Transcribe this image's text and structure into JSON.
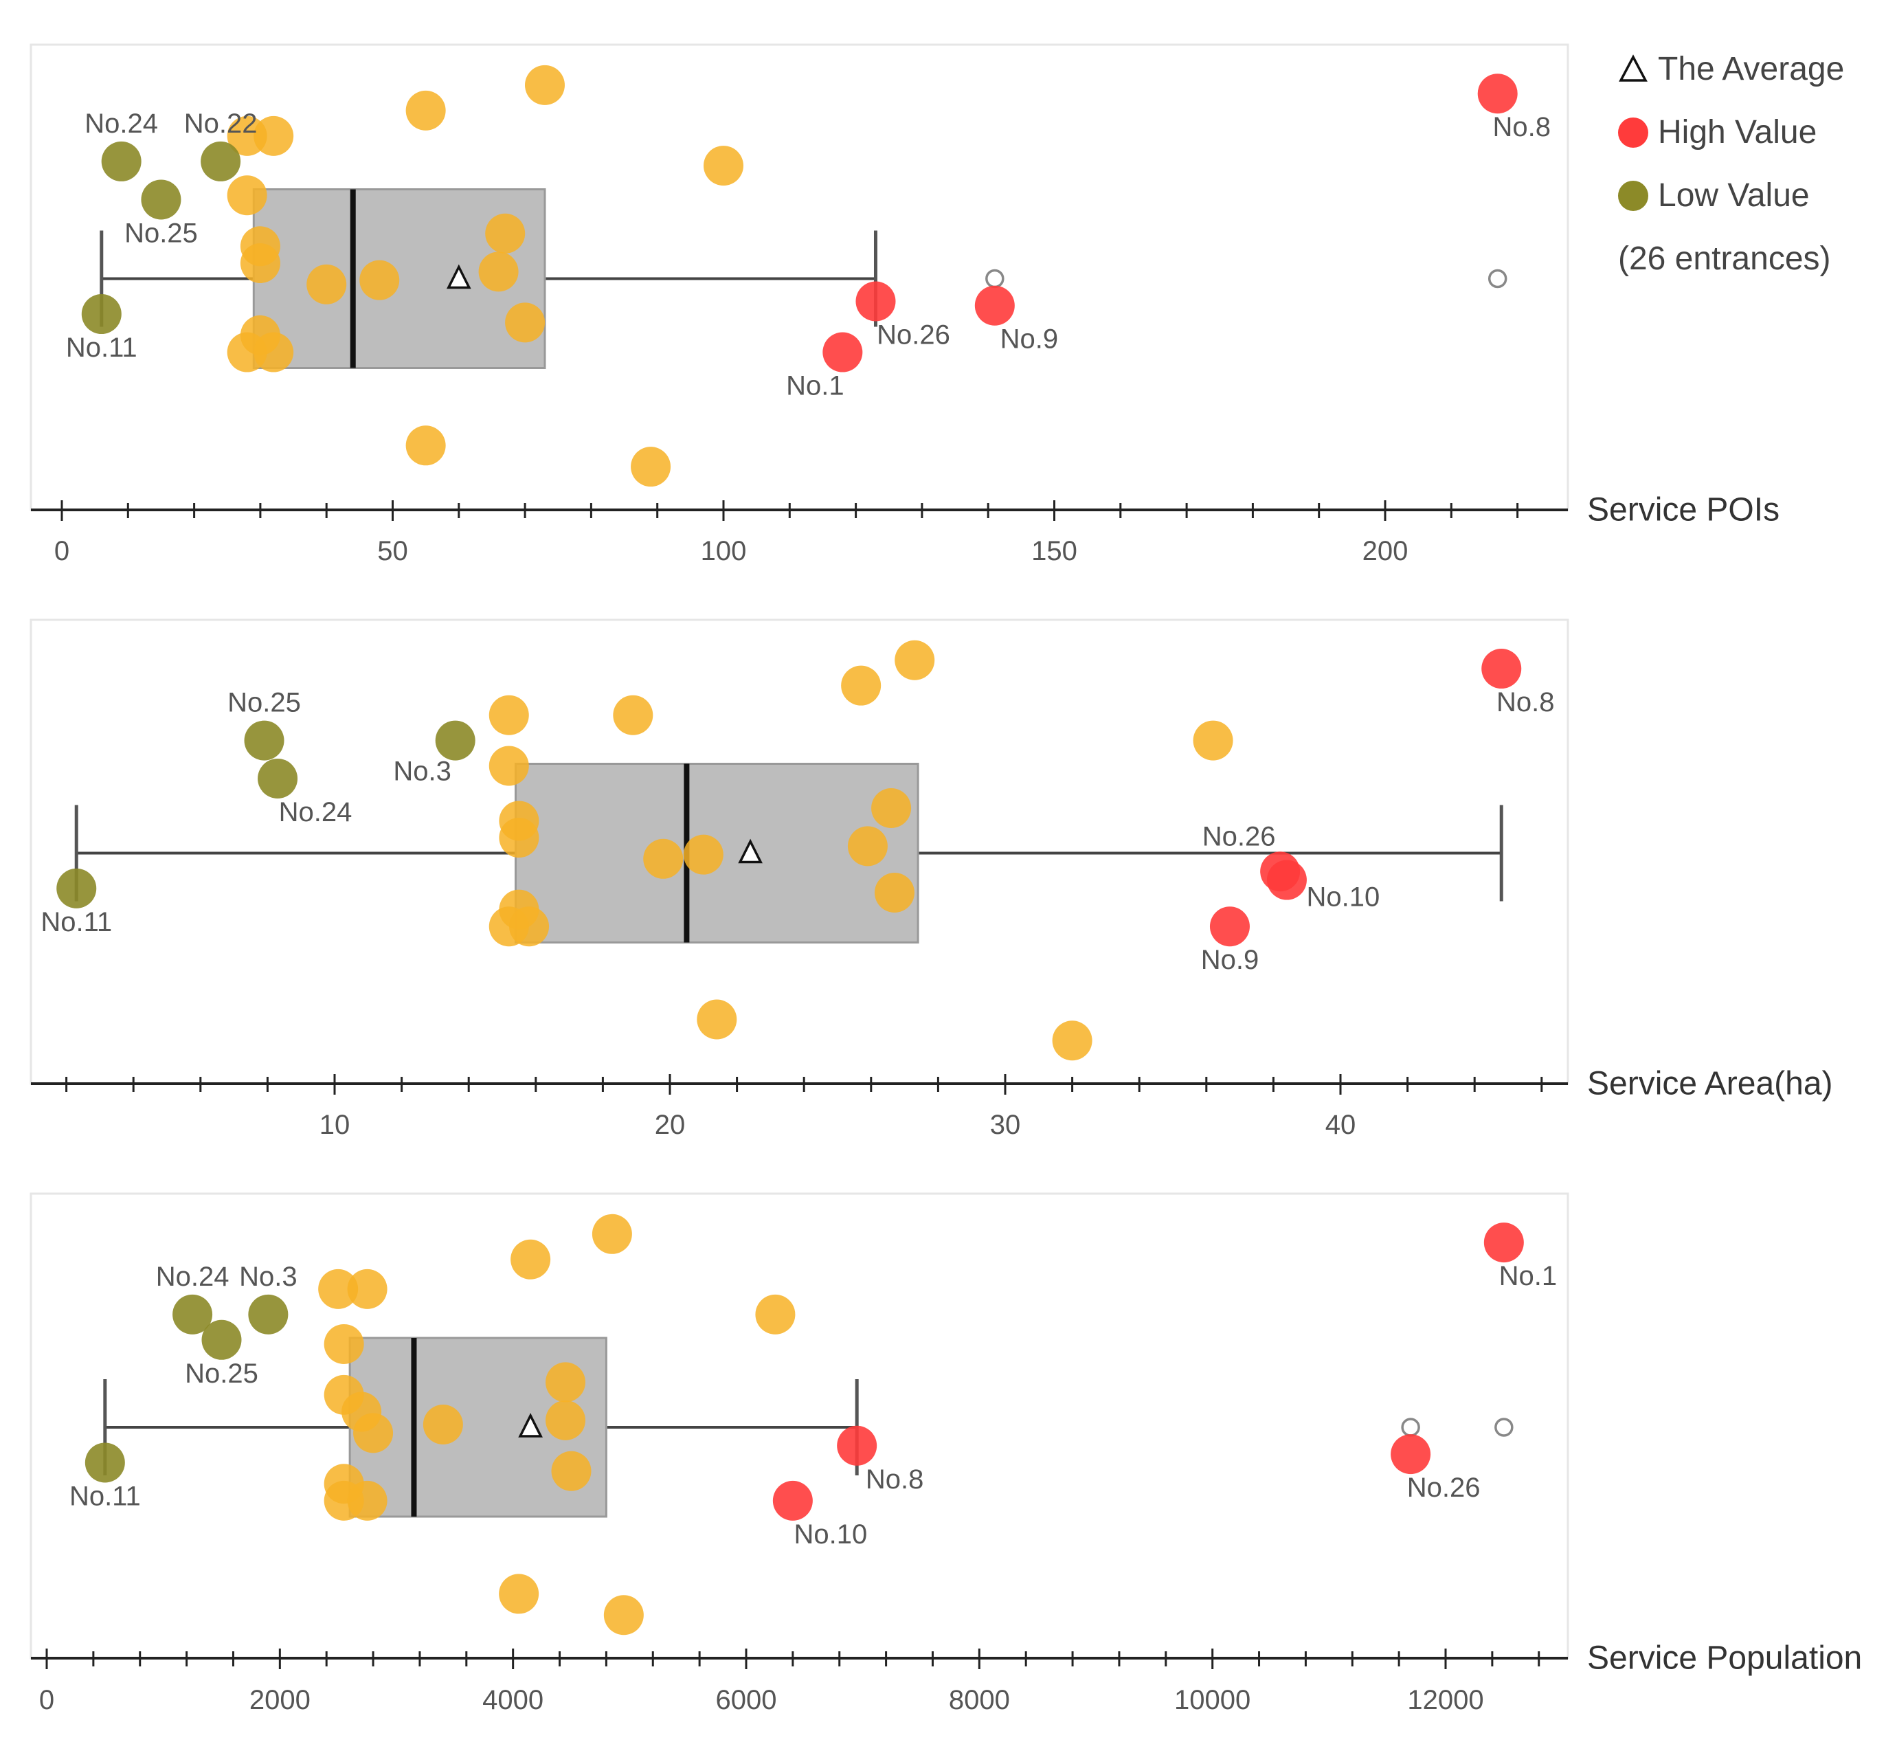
{
  "legend": {
    "average_label": "The Average",
    "high_label": "High Value",
    "low_label": "Low Value",
    "count_label": "(26 entrances)",
    "high_color": "#ff3b3b",
    "low_color": "#8c8a28",
    "normal_color": "#f7b126"
  },
  "chart_data": [
    {
      "type": "scatter",
      "title": "",
      "xlabel": "Service POIs",
      "ylabel": "",
      "xlim": [
        -5,
        230
      ],
      "ticks": [
        0,
        50,
        100,
        150,
        200
      ],
      "tick_labels": [
        "0",
        "50",
        "100",
        "150",
        "200"
      ],
      "minor_step": 10,
      "box": {
        "q1": 29,
        "median": 44,
        "q3": 73,
        "whisker_low": 6,
        "whisker_high": 123,
        "mean": 60
      },
      "outliers": [
        141,
        217
      ],
      "points": [
        {
          "x": 73,
          "j": 0.95,
          "cat": "normal"
        },
        {
          "x": 55,
          "j": 0.89,
          "cat": "normal"
        },
        {
          "x": 28,
          "j": 0.83,
          "cat": "normal"
        },
        {
          "x": 32,
          "j": 0.83,
          "cat": "normal"
        },
        {
          "x": 9,
          "j": 0.77,
          "cat": "low",
          "label": "No.24"
        },
        {
          "x": 24,
          "j": 0.77,
          "cat": "low",
          "label": "No.22"
        },
        {
          "x": 100,
          "j": 0.76,
          "cat": "normal"
        },
        {
          "x": 15,
          "j": 0.68,
          "cat": "low",
          "label": "No.25"
        },
        {
          "x": 28,
          "j": 0.69,
          "cat": "normal"
        },
        {
          "x": 67,
          "j": 0.6,
          "cat": "normal"
        },
        {
          "x": 30,
          "j": 0.57,
          "cat": "normal"
        },
        {
          "x": 30,
          "j": 0.53,
          "cat": "normal"
        },
        {
          "x": 66,
          "j": 0.51,
          "cat": "normal"
        },
        {
          "x": 48,
          "j": 0.49,
          "cat": "normal"
        },
        {
          "x": 40,
          "j": 0.48,
          "cat": "normal"
        },
        {
          "x": 123,
          "j": 0.44,
          "cat": "high",
          "label": "No.26"
        },
        {
          "x": 141,
          "j": 0.43,
          "cat": "high",
          "label": "No.9"
        },
        {
          "x": 6,
          "j": 0.41,
          "cat": "low",
          "label": "No.11"
        },
        {
          "x": 70,
          "j": 0.39,
          "cat": "normal"
        },
        {
          "x": 30,
          "j": 0.36,
          "cat": "normal"
        },
        {
          "x": 28,
          "j": 0.32,
          "cat": "normal"
        },
        {
          "x": 32,
          "j": 0.32,
          "cat": "normal"
        },
        {
          "x": 118,
          "j": 0.32,
          "cat": "high",
          "label": "No.1"
        },
        {
          "x": 55,
          "j": 0.1,
          "cat": "normal"
        },
        {
          "x": 89,
          "j": 0.05,
          "cat": "normal"
        },
        {
          "x": 217,
          "j": 0.93,
          "cat": "high",
          "label": "No.8"
        }
      ]
    },
    {
      "type": "scatter",
      "title": "",
      "xlabel": "Service Area(ha)",
      "ylabel": "",
      "xlim": [
        1.1,
        46.3
      ],
      "ticks": [
        10,
        20,
        30,
        40
      ],
      "tick_labels": [
        "10",
        "20",
        "30",
        "40"
      ],
      "minor_step": 2,
      "box": {
        "q1": 15.4,
        "median": 20.5,
        "q3": 27.4,
        "whisker_low": 2.3,
        "whisker_high": 44.8,
        "mean": 22.4
      },
      "outliers": [],
      "points": [
        {
          "x": 27.3,
          "j": 0.95,
          "cat": "normal"
        },
        {
          "x": 25.7,
          "j": 0.89,
          "cat": "normal"
        },
        {
          "x": 15.2,
          "j": 0.82,
          "cat": "normal"
        },
        {
          "x": 18.9,
          "j": 0.82,
          "cat": "normal"
        },
        {
          "x": 7.9,
          "j": 0.76,
          "cat": "low",
          "label": "No.25"
        },
        {
          "x": 13.6,
          "j": 0.76,
          "cat": "low",
          "label": "No.3"
        },
        {
          "x": 36.2,
          "j": 0.76,
          "cat": "normal"
        },
        {
          "x": 8.3,
          "j": 0.67,
          "cat": "low",
          "label": "No.24"
        },
        {
          "x": 15.2,
          "j": 0.7,
          "cat": "normal"
        },
        {
          "x": 26.6,
          "j": 0.6,
          "cat": "normal"
        },
        {
          "x": 15.5,
          "j": 0.57,
          "cat": "normal"
        },
        {
          "x": 15.5,
          "j": 0.53,
          "cat": "normal"
        },
        {
          "x": 25.9,
          "j": 0.51,
          "cat": "normal"
        },
        {
          "x": 21.0,
          "j": 0.49,
          "cat": "normal"
        },
        {
          "x": 19.8,
          "j": 0.48,
          "cat": "normal"
        },
        {
          "x": 38.2,
          "j": 0.45,
          "cat": "high",
          "label": "No.26"
        },
        {
          "x": 38.4,
          "j": 0.43,
          "cat": "high",
          "label": "No.10"
        },
        {
          "x": 2.3,
          "j": 0.41,
          "cat": "low",
          "label": "No.11"
        },
        {
          "x": 26.7,
          "j": 0.4,
          "cat": "normal"
        },
        {
          "x": 15.5,
          "j": 0.36,
          "cat": "normal"
        },
        {
          "x": 15.2,
          "j": 0.32,
          "cat": "normal"
        },
        {
          "x": 15.8,
          "j": 0.32,
          "cat": "normal"
        },
        {
          "x": 36.7,
          "j": 0.32,
          "cat": "high",
          "label": "No.9"
        },
        {
          "x": 21.4,
          "j": 0.1,
          "cat": "normal"
        },
        {
          "x": 32.0,
          "j": 0.05,
          "cat": "normal"
        },
        {
          "x": 44.8,
          "j": 0.93,
          "cat": "high",
          "label": "No.8"
        }
      ]
    },
    {
      "type": "scatter",
      "title": "",
      "xlabel": "Service Population",
      "ylabel": "",
      "xlim": [
        -100,
        13100
      ],
      "ticks": [
        0,
        2000,
        4000,
        6000,
        8000,
        10000,
        12000
      ],
      "tick_labels": [
        "0",
        "2000",
        "4000",
        "6000",
        "8000",
        "10000",
        "12000"
      ],
      "minor_step": 400,
      "box": {
        "q1": 2600,
        "median": 3150,
        "q3": 4800,
        "whisker_low": 500,
        "whisker_high": 6950,
        "mean": 4150
      },
      "outliers": [
        11700,
        12500
      ],
      "points": [
        {
          "x": 4850,
          "j": 0.95,
          "cat": "normal"
        },
        {
          "x": 4150,
          "j": 0.89,
          "cat": "normal"
        },
        {
          "x": 2500,
          "j": 0.82,
          "cat": "normal"
        },
        {
          "x": 2750,
          "j": 0.82,
          "cat": "normal"
        },
        {
          "x": 1250,
          "j": 0.76,
          "cat": "low",
          "label": "No.24"
        },
        {
          "x": 1900,
          "j": 0.76,
          "cat": "low",
          "label": "No.3"
        },
        {
          "x": 6250,
          "j": 0.76,
          "cat": "normal"
        },
        {
          "x": 1500,
          "j": 0.7,
          "cat": "low",
          "label": "No.25"
        },
        {
          "x": 2550,
          "j": 0.69,
          "cat": "normal"
        },
        {
          "x": 4450,
          "j": 0.6,
          "cat": "normal"
        },
        {
          "x": 2550,
          "j": 0.57,
          "cat": "normal"
        },
        {
          "x": 2700,
          "j": 0.53,
          "cat": "normal"
        },
        {
          "x": 4450,
          "j": 0.51,
          "cat": "normal"
        },
        {
          "x": 3400,
          "j": 0.5,
          "cat": "normal"
        },
        {
          "x": 2800,
          "j": 0.48,
          "cat": "normal"
        },
        {
          "x": 6950,
          "j": 0.45,
          "cat": "high",
          "label": "No.8"
        },
        {
          "x": 11700,
          "j": 0.43,
          "cat": "high",
          "label": "No.26"
        },
        {
          "x": 500,
          "j": 0.41,
          "cat": "low",
          "label": "No.11"
        },
        {
          "x": 4500,
          "j": 0.39,
          "cat": "normal"
        },
        {
          "x": 2550,
          "j": 0.36,
          "cat": "normal"
        },
        {
          "x": 2550,
          "j": 0.32,
          "cat": "normal"
        },
        {
          "x": 2750,
          "j": 0.32,
          "cat": "normal"
        },
        {
          "x": 6400,
          "j": 0.32,
          "cat": "high",
          "label": "No.10"
        },
        {
          "x": 4050,
          "j": 0.1,
          "cat": "normal"
        },
        {
          "x": 4950,
          "j": 0.05,
          "cat": "normal"
        },
        {
          "x": 12500,
          "j": 0.93,
          "cat": "high",
          "label": "No.1"
        }
      ]
    }
  ]
}
